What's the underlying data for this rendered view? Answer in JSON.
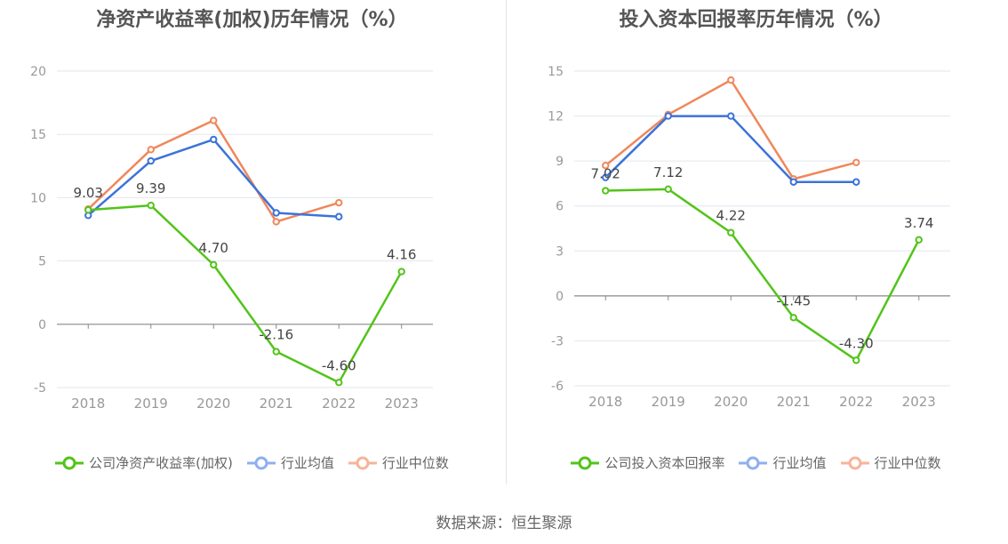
{
  "source_text": "数据来源：恒生聚源",
  "chart_data": [
    {
      "type": "line",
      "title": "净资产收益率(加权)历年情况（%）",
      "categories": [
        "2018",
        "2019",
        "2020",
        "2021",
        "2022",
        "2023"
      ],
      "ylim": [
        -5,
        20
      ],
      "yticks": [
        -5,
        0,
        5,
        10,
        15,
        20
      ],
      "legend_position": "bottom",
      "series": [
        {
          "name": "公司净资产收益率(加权)",
          "color": "#52c41a",
          "values": [
            9.03,
            9.39,
            4.7,
            -2.16,
            -4.6,
            4.16
          ],
          "labels": [
            "9.03",
            "9.39",
            "4.70",
            "-2.16",
            "-4.60",
            "4.16"
          ]
        },
        {
          "name": "行业均值",
          "color": "#3b73d9",
          "values": [
            8.6,
            12.9,
            14.6,
            8.8,
            8.5,
            null
          ]
        },
        {
          "name": "行业中位数",
          "color": "#f0875a",
          "values": [
            9.1,
            13.8,
            16.1,
            8.1,
            9.6,
            null
          ]
        }
      ]
    },
    {
      "type": "line",
      "title": "投入资本回报率历年情况（%）",
      "categories": [
        "2018",
        "2019",
        "2020",
        "2021",
        "2022",
        "2023"
      ],
      "ylim": [
        -6,
        15
      ],
      "yticks": [
        -6,
        -3,
        0,
        3,
        6,
        9,
        12,
        15
      ],
      "legend_position": "bottom",
      "series": [
        {
          "name": "公司投入资本回报率",
          "color": "#52c41a",
          "values": [
            7.02,
            7.12,
            4.22,
            -1.45,
            -4.3,
            3.74
          ],
          "labels": [
            "7.02",
            "7.12",
            "4.22",
            "-1.45",
            "-4.30",
            "3.74"
          ]
        },
        {
          "name": "行业均值",
          "color": "#3b73d9",
          "values": [
            7.9,
            12.0,
            12.0,
            7.6,
            7.6,
            null
          ]
        },
        {
          "name": "行业中位数",
          "color": "#f0875a",
          "values": [
            8.7,
            12.1,
            14.4,
            7.8,
            8.9,
            null
          ]
        }
      ]
    }
  ]
}
